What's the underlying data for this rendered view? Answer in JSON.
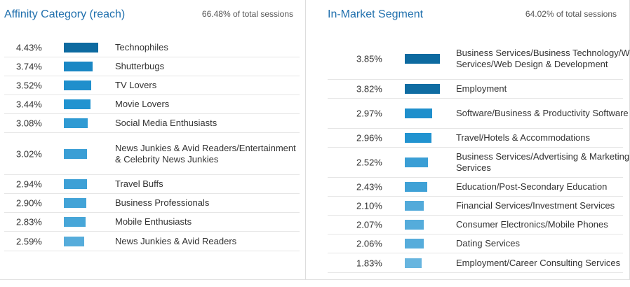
{
  "left": {
    "title": "Affinity Category (reach)",
    "note": "66.48% of total sessions",
    "rows": [
      {
        "pct": "4.43%",
        "label": "Technophiles",
        "value": 4.43,
        "color": "#0d6aa0"
      },
      {
        "pct": "3.74%",
        "label": "Shutterbugs",
        "value": 3.74,
        "color": "#1a87c4"
      },
      {
        "pct": "3.52%",
        "label": "TV Lovers",
        "value": 3.52,
        "color": "#1f8fcc"
      },
      {
        "pct": "3.44%",
        "label": "Movie Lovers",
        "value": 3.44,
        "color": "#2193d0"
      },
      {
        "pct": "3.08%",
        "label": "Social Media Enthusiasts",
        "value": 3.08,
        "color": "#2f9ad3"
      },
      {
        "pct": "3.02%",
        "label": "News Junkies & Avid Readers/Entertainment & Celebrity News Junkies",
        "value": 3.02,
        "color": "#3a9ed5"
      },
      {
        "pct": "2.94%",
        "label": "Travel Buffs",
        "value": 2.94,
        "color": "#3da0d6"
      },
      {
        "pct": "2.90%",
        "label": "Business Professionals",
        "value": 2.9,
        "color": "#42a3d7"
      },
      {
        "pct": "2.83%",
        "label": "Mobile Enthusiasts",
        "value": 2.83,
        "color": "#47a6d8"
      },
      {
        "pct": "2.59%",
        "label": "News Junkies & Avid Readers",
        "value": 2.59,
        "color": "#56acdb"
      }
    ]
  },
  "right": {
    "title": "In-Market Segment",
    "note": "64.02% of total sessions",
    "rows": [
      {
        "pct": "3.85%",
        "label": "Business Services/Business Technology/Web Services/Web Design & Development",
        "value": 3.85,
        "color": "#0d6aa0"
      },
      {
        "pct": "3.82%",
        "label": "Employment",
        "value": 3.82,
        "color": "#0f6ca2"
      },
      {
        "pct": "2.97%",
        "label": "Software/Business & Productivity Software",
        "value": 2.97,
        "color": "#1f8fcc"
      },
      {
        "pct": "2.96%",
        "label": "Travel/Hotels & Accommodations",
        "value": 2.96,
        "color": "#2193d0"
      },
      {
        "pct": "2.52%",
        "label": "Business Services/Advertising & Marketing Services",
        "value": 2.52,
        "color": "#3a9ed5"
      },
      {
        "pct": "2.43%",
        "label": "Education/Post-Secondary Education",
        "value": 2.43,
        "color": "#3fa1d6"
      },
      {
        "pct": "2.10%",
        "label": "Financial Services/Investment Services",
        "value": 2.1,
        "color": "#52aada"
      },
      {
        "pct": "2.07%",
        "label": "Consumer Electronics/Mobile Phones",
        "value": 2.07,
        "color": "#55acdb"
      },
      {
        "pct": "2.06%",
        "label": "Dating Services",
        "value": 2.06,
        "color": "#56acdb"
      },
      {
        "pct": "1.83%",
        "label": "Employment/Career Consulting Services",
        "value": 1.83,
        "color": "#67b5df"
      }
    ]
  }
}
